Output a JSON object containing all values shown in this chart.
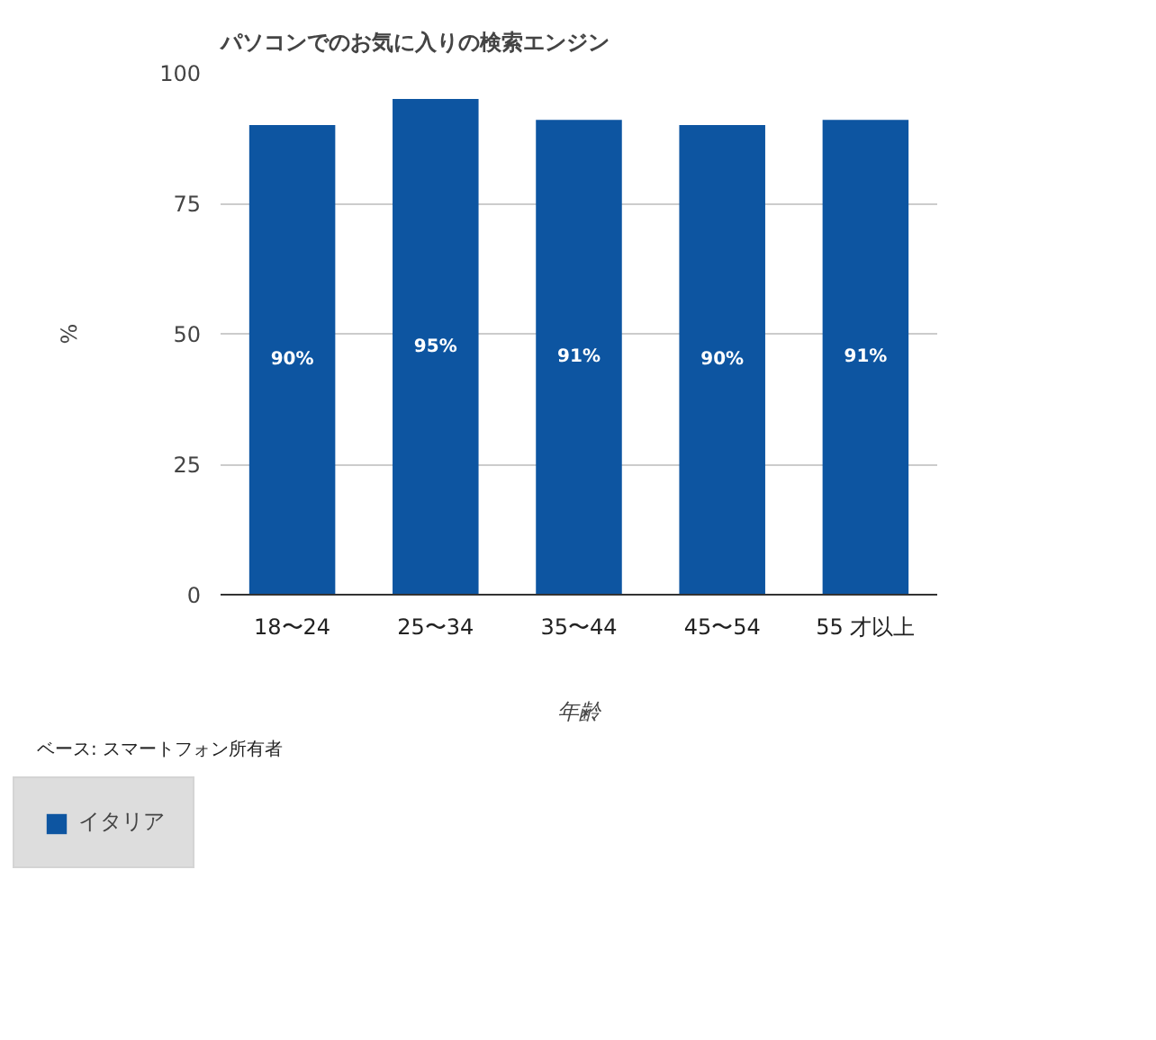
{
  "chart_data": {
    "type": "bar",
    "title": "パソコンでのお気に入りの検索エンジン",
    "xlabel": "年齢",
    "ylabel": "%",
    "categories": [
      "18〜24",
      "25〜34",
      "35〜44",
      "45〜54",
      "55 才以上"
    ],
    "series": [
      {
        "name": "イタリア",
        "color": "#0d55a1",
        "values": [
          90,
          95,
          91,
          90,
          91
        ],
        "value_labels": [
          "90%",
          "95%",
          "91%",
          "90%",
          "91%"
        ]
      }
    ],
    "ylim": [
      0,
      100
    ],
    "yticks": [
      0,
      25,
      50,
      75,
      100
    ],
    "grid": "y",
    "legend": "bottom",
    "annotations": [
      "ベース: スマートフォン所有者"
    ]
  }
}
